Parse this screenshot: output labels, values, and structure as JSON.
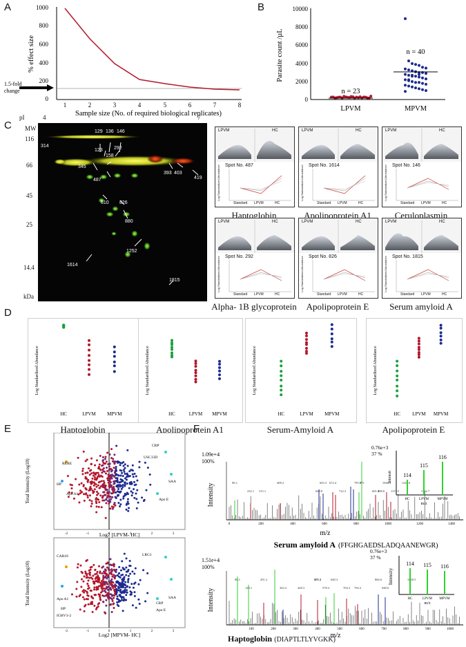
{
  "panel_labels": [
    "A",
    "B",
    "C",
    "D",
    "E",
    "F"
  ],
  "panelA": {
    "ylabel": "% effect size",
    "xlabel": "Sample size (No. of required biological replicates)",
    "annotation_line1": "1.5-fold",
    "annotation_line2": "change",
    "yticks": [
      "0",
      "200",
      "400",
      "600",
      "800",
      "1000"
    ],
    "xticks": [
      "1",
      "2",
      "3",
      "4",
      "5",
      "6",
      "7",
      "8"
    ]
  },
  "panelB": {
    "ylabel": "Parasite count /µL",
    "yticks": [
      "0",
      "2000",
      "4000",
      "6000",
      "8000",
      "10000"
    ],
    "groups": [
      "LPVM",
      "MPVM"
    ],
    "n_labels": [
      "n = 23",
      "n = 40"
    ]
  },
  "panelC": {
    "pI_label": "pI",
    "pI_left": "4",
    "pI_right": "7",
    "mw_label": "MW",
    "mw_ticks": [
      "116",
      "66",
      "45",
      "25",
      "14.4"
    ],
    "kda_label": "kDa",
    "spots": [
      "314",
      "129",
      "136",
      "146",
      "123",
      "292",
      "158",
      "345",
      "487",
      "393",
      "403",
      "419",
      "610",
      "826",
      "880",
      "1252",
      "1614",
      "1815"
    ],
    "mini_panels": [
      {
        "spot": "Spot No. 487",
        "name": "Haptoglobin"
      },
      {
        "spot": "Spot No. 1614",
        "name": "Apolipoprotein A1"
      },
      {
        "spot": "Spot No. 146",
        "name": "Ceruloplasmin"
      },
      {
        "spot": "Spot No. 292",
        "name": "Alpha- 1B glycoprotein"
      },
      {
        "spot": "Spot No. 826",
        "name": "Apolipoprotein E"
      },
      {
        "spot": "Spot No. 1815",
        "name": "Serum amyloid A"
      }
    ],
    "mini_top_left": "LPVM",
    "mini_top_right": "HC",
    "mini_x": [
      "Standard",
      "LPVM",
      "HC"
    ],
    "mini_ylabel": "Log Standardized Abundance"
  },
  "panelD": {
    "ylabel": "Log Standardized Abundance",
    "plots": [
      {
        "name": "Haptoglobin",
        "x": [
          "HC",
          "LPVM",
          "MPVM"
        ]
      },
      {
        "name": "Apolipoprotein A1",
        "x": [
          "HC",
          "LPVM",
          "MPVM"
        ]
      },
      {
        "name": "Serum-Amyloid A",
        "x": [
          "HC",
          "LPVM",
          "MPVM"
        ]
      },
      {
        "name": "Apolipoprotein E",
        "x": [
          "HC",
          "LPVM",
          "MPVM"
        ]
      }
    ]
  },
  "panelE": {
    "top": {
      "ylabel": "Total Intensity (Log10)",
      "xlabel": "Log2 [LPVM- HC]",
      "labels": [
        "CRP",
        "USC13D",
        "RERE",
        "HP",
        "Apo A1",
        "SAA",
        "Apo E"
      ]
    },
    "bottom": {
      "ylabel": "Total Intensity (Log10)",
      "xlabel": "Log2 [MPVM- HC]",
      "labels": [
        "LRG1",
        "CAR18",
        "Apo A1",
        "HP",
        "IGHV3-2",
        "SAA",
        "CRP",
        "Apo E"
      ]
    },
    "xticks": [
      "-2",
      "-1",
      "0",
      "1",
      "2",
      "3"
    ]
  },
  "panelF": {
    "top": {
      "intensity": "1.09e+4",
      "percent": "100%",
      "ylabel": "Intensity",
      "xlabel": "m/z",
      "inset_top": "0.76e+3",
      "inset_pct": "37 %",
      "inset_peaks": [
        "114",
        "115",
        "116"
      ],
      "inset_ylabel": "Intensit",
      "inset_x": [
        "HC",
        "LPVM",
        "MPVM"
      ],
      "inset_xlabel": "m/z",
      "protein": "Serum amyloid A",
      "peptide": "(FFGHGAEDSLADQAANEWGR)",
      "xticks": [
        "0",
        "200",
        "400",
        "600",
        "800",
        "1000",
        "1200",
        "1400"
      ],
      "peak_labels": [
        "86.1",
        "232.1",
        "408.2",
        "315.1",
        "672.4",
        "722.3",
        "785.9",
        "601.4",
        "1046.5",
        "1117.5",
        "1249.6",
        "1342.7",
        "375",
        "648.8",
        "603.3",
        "888.6"
      ]
    },
    "bottom": {
      "intensity": "1.51e+4",
      "percent": "100%",
      "ylabel": "Intensity",
      "xlabel": "m/z",
      "inset_top": "0.76e+3",
      "inset_pct": "37 %",
      "inset_peaks": [
        "114",
        "115",
        "116"
      ],
      "inset_ylabel": "Intensity",
      "inset_x": [
        "HC",
        "LPVM",
        "MPVM"
      ],
      "inset_xlabel": "m/z",
      "protein": "Haptoglobin",
      "peptide": "(DIAPTLTLYVGKK)",
      "xticks": [
        "100",
        "200",
        "300",
        "400",
        "500",
        "600",
        "700",
        "800",
        "900",
        "1000"
      ],
      "peak_labels": [
        "86.1",
        "129.1",
        "291.2",
        "428.3",
        "475.2",
        "578.3",
        "640.3",
        "794.3",
        "866.6",
        "948.6",
        "1028.5",
        "704.3",
        "607.3",
        "363.2"
      ]
    }
  },
  "colors": {
    "hc": "#1aa040",
    "lpvm": "#b3172b",
    "mpvm": "#1c2b8f",
    "curve": "#b3172b",
    "spectrum": "#333333",
    "green_peak": "#2fd12f"
  }
}
